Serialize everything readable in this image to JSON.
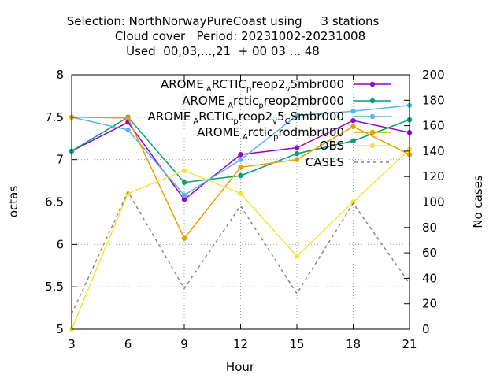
{
  "title_lines": [
    "Selection: NorthNorwayPureCoast using     3 stations",
    "Cloud cover   Period: 20231002-20231008",
    "Used  00,03,...,21  + 00 03 ... 48"
  ],
  "chart_data": {
    "type": "line",
    "xlabel": "Hour",
    "ylabel": "octas",
    "y2label": "No cases",
    "x": [
      3,
      6,
      9,
      12,
      15,
      18,
      21
    ],
    "xlim": [
      3,
      21
    ],
    "ylim": [
      5,
      8
    ],
    "y2lim": [
      0,
      200
    ],
    "xticks": [
      3,
      6,
      9,
      12,
      15,
      18,
      21
    ],
    "yticks": [
      5,
      5.5,
      6,
      6.5,
      7,
      7.5,
      8
    ],
    "y2ticks": [
      0,
      20,
      40,
      60,
      80,
      100,
      120,
      140,
      160,
      180,
      200
    ],
    "grid": true,
    "legend_position": "top-right",
    "series": [
      {
        "name": "AROME_ARCTIC_preop2_v5mbr000",
        "legend_parts": [
          "AROME",
          "A",
          "RCTIC",
          "p",
          "reop2",
          "v",
          "5mbr000"
        ],
        "axis": "left",
        "color": "#9400d3",
        "marker": "circle",
        "values": [
          7.1,
          7.44,
          6.53,
          7.06,
          7.14,
          7.46,
          7.32
        ]
      },
      {
        "name": "AROME_Arctic_preop2mbr000",
        "legend_parts": [
          "AROME",
          "A",
          "rctic",
          "p",
          "reop2mbr000"
        ],
        "axis": "left",
        "color": "#009e73",
        "marker": "circle",
        "values": [
          7.1,
          7.5,
          6.73,
          6.81,
          7.07,
          7.22,
          7.47
        ]
      },
      {
        "name": "AROME_ARCTIC_preop2_v5_CSmbr000",
        "legend_parts": [
          "AROME",
          "A",
          "RCTIC",
          "p",
          "reop2",
          "v",
          "5",
          "C",
          "Smbr000"
        ],
        "axis": "left",
        "color": "#56b4e9",
        "marker": "circle",
        "values": [
          7.5,
          7.35,
          6.58,
          7.0,
          7.52,
          7.57,
          7.64
        ]
      },
      {
        "name": "AROME_Arctic_prodmbr000",
        "legend_parts": [
          "AROME",
          "A",
          "rctic",
          "p",
          "rodmbr000"
        ],
        "axis": "left",
        "color": "#e69f00",
        "marker": "circle",
        "values": [
          7.5,
          7.49,
          6.07,
          6.91,
          7.0,
          7.39,
          7.06
        ]
      },
      {
        "name": "OBS",
        "legend_parts": [
          "OBS"
        ],
        "axis": "left",
        "color": "#f0e442",
        "marker": "circle",
        "values": [
          5.0,
          6.6,
          6.87,
          6.6,
          5.86,
          6.5,
          7.12
        ]
      },
      {
        "name": "CASES",
        "legend_parts": [
          "CASES"
        ],
        "axis": "right",
        "color": "#888888",
        "marker": "none",
        "dash": true,
        "values": [
          12,
          108,
          32,
          97,
          28,
          99,
          36
        ]
      }
    ]
  }
}
